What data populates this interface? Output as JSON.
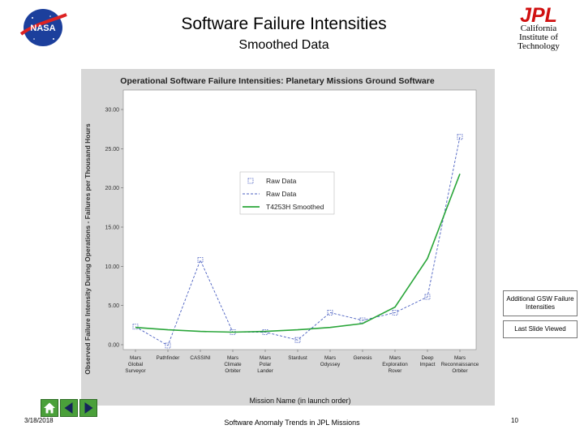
{
  "header": {
    "title": "Software Failure Intensities",
    "subtitle": "Smoothed Data",
    "nasa_logo_text": "NASA",
    "jpl_logo_text": "JPL",
    "institution": [
      "California",
      "Institute of",
      "Technology"
    ]
  },
  "chart_data": {
    "type": "line",
    "title": "Operational Software Failure Intensities: Planetary Missions Ground Software",
    "ylabel": "Observed Failure Intensity During Operations - Failures per Thousand Hours",
    "xlabel": "Mission Name (in launch order)",
    "ylim": [
      0,
      30
    ],
    "yticks": [
      "0.00",
      "5.00",
      "10.00",
      "15.00",
      "20.00",
      "25.00",
      "30.00"
    ],
    "categories": [
      [
        "Mars",
        "Global",
        "Surveyor"
      ],
      [
        "Pathfinder"
      ],
      [
        "CASSINI"
      ],
      [
        "Mars",
        "Climate",
        "Orbiter"
      ],
      [
        "Mars",
        "Polar",
        "Lander"
      ],
      [
        "Stardust"
      ],
      [
        "Mars",
        "Odyssey"
      ],
      [
        "Genesis"
      ],
      [
        "Mars",
        "Exploration",
        "Rover"
      ],
      [
        "Deep",
        "Impact"
      ],
      [
        "Mars",
        "Reconnaissance",
        "Orbiter"
      ]
    ],
    "series": [
      {
        "name": "Raw Data",
        "style": "markers",
        "color": "#4a5fc1",
        "values": [
          2.3,
          -0.1,
          10.8,
          1.6,
          1.6,
          0.6,
          4.1,
          3.1,
          4.1,
          6.1,
          26.5
        ]
      },
      {
        "name": "Raw Data",
        "style": "dashed",
        "color": "#4a5fc1",
        "values": [
          2.3,
          -0.1,
          10.8,
          1.6,
          1.6,
          0.6,
          4.1,
          3.1,
          4.1,
          6.1,
          26.5
        ]
      },
      {
        "name": "T4253H Smoothed",
        "style": "solid",
        "color": "#2aa63a",
        "values": [
          2.2,
          1.9,
          1.7,
          1.6,
          1.7,
          1.9,
          2.2,
          2.7,
          4.8,
          11.0,
          21.8
        ]
      }
    ],
    "legend_placement": "center",
    "grid": false
  },
  "side_buttons": {
    "intensities": "Additional GSW Failure Intensities",
    "last_slide": "Last Slide Viewed"
  },
  "nav": {
    "home_icon": "home-icon",
    "prev_icon": "arrow-left-icon",
    "next_icon": "arrow-right-icon"
  },
  "footer": {
    "date": "3/18/2018",
    "title": "Software Anomaly Trends in JPL Missions",
    "page": "10"
  }
}
